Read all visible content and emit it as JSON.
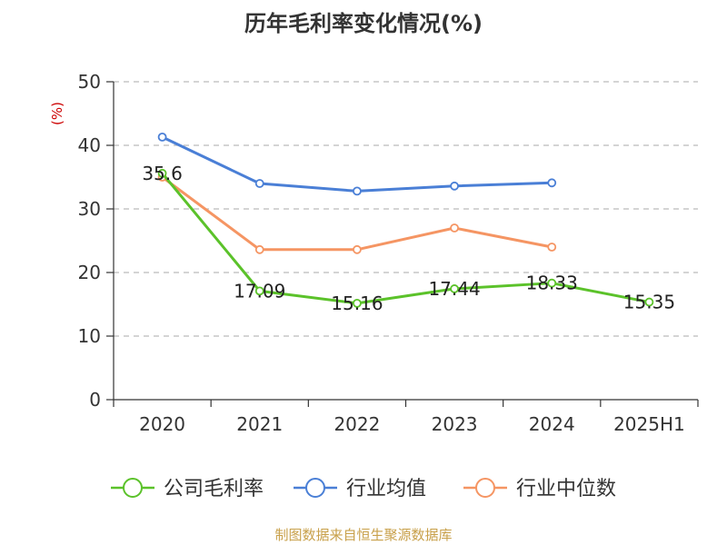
{
  "chart_data": {
    "type": "line",
    "title": "历年毛利率变化情况(%)",
    "ylabel": "(%)",
    "xlabel": "",
    "categories": [
      "2020",
      "2021",
      "2022",
      "2023",
      "2024",
      "2025H1"
    ],
    "ylim": [
      0,
      50
    ],
    "yticks": [
      0,
      10,
      20,
      30,
      40,
      50
    ],
    "grid": true,
    "legend_position": "bottom",
    "series": [
      {
        "name": "公司毛利率",
        "color": "#5bc22a",
        "values": [
          35.6,
          17.09,
          15.16,
          17.44,
          18.33,
          15.35
        ],
        "labels": [
          "35.6",
          "17.09",
          "15.16",
          "17.44",
          "18.33",
          "15.35"
        ]
      },
      {
        "name": "行业均值",
        "color": "#4a7fd6",
        "values": [
          41.3,
          34.0,
          32.8,
          33.6,
          34.1,
          null
        ]
      },
      {
        "name": "行业中位数",
        "color": "#f59563",
        "values": [
          35.0,
          23.6,
          23.6,
          27.0,
          24.0,
          null
        ]
      }
    ]
  },
  "source": "制图数据来自恒生聚源数据库"
}
